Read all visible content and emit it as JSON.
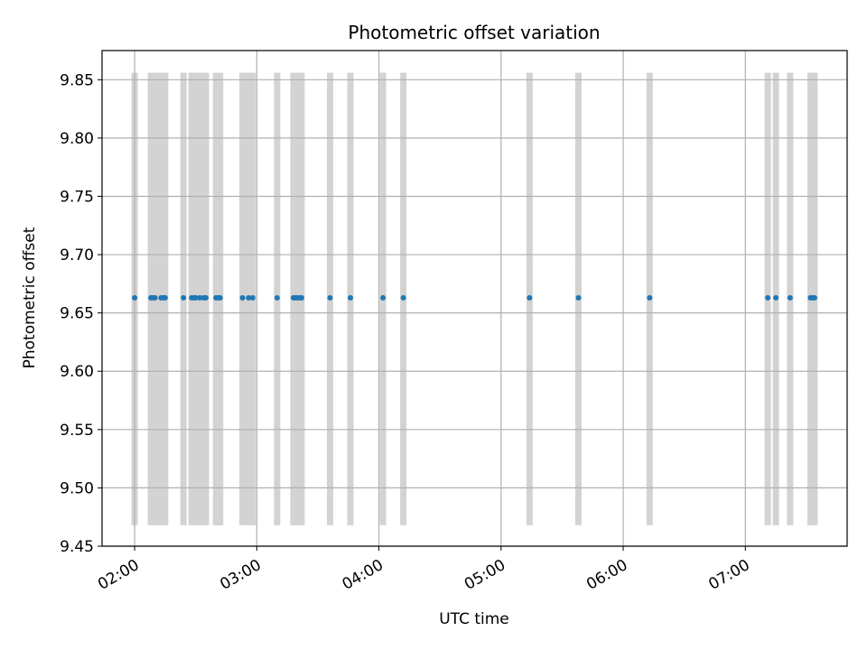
{
  "chart_data": {
    "type": "scatter",
    "title": "Photometric offset variation",
    "xlabel": "UTC time",
    "ylabel": "Photometric offset",
    "xlim": [
      "01:44",
      "07:50"
    ],
    "ylim": [
      9.45,
      9.875
    ],
    "x_ticks": [
      "02:00",
      "03:00",
      "04:00",
      "05:00",
      "06:00",
      "07:00"
    ],
    "y_ticks": [
      "9.45",
      "9.50",
      "9.55",
      "9.60",
      "9.65",
      "9.70",
      "9.75",
      "9.80",
      "9.85"
    ],
    "grid": true,
    "band_range": [
      9.468,
      9.856
    ],
    "band_color": "#d3d3d3",
    "point_color": "#1f77b4",
    "points": [
      {
        "x": "02:00",
        "y": 9.663
      },
      {
        "x": "02:08",
        "y": 9.663
      },
      {
        "x": "02:09",
        "y": 9.663
      },
      {
        "x": "02:10",
        "y": 9.663
      },
      {
        "x": "02:13",
        "y": 9.663
      },
      {
        "x": "02:14",
        "y": 9.663
      },
      {
        "x": "02:15",
        "y": 9.663
      },
      {
        "x": "02:24",
        "y": 9.663
      },
      {
        "x": "02:28",
        "y": 9.663
      },
      {
        "x": "02:29",
        "y": 9.663
      },
      {
        "x": "02:30",
        "y": 9.663
      },
      {
        "x": "02:32",
        "y": 9.663
      },
      {
        "x": "02:34",
        "y": 9.663
      },
      {
        "x": "02:35",
        "y": 9.663
      },
      {
        "x": "02:40",
        "y": 9.663
      },
      {
        "x": "02:41",
        "y": 9.663
      },
      {
        "x": "02:42",
        "y": 9.663
      },
      {
        "x": "02:53",
        "y": 9.663
      },
      {
        "x": "02:56",
        "y": 9.663
      },
      {
        "x": "02:58",
        "y": 9.663
      },
      {
        "x": "03:10",
        "y": 9.663
      },
      {
        "x": "03:18",
        "y": 9.663
      },
      {
        "x": "03:19",
        "y": 9.663
      },
      {
        "x": "03:20",
        "y": 9.663
      },
      {
        "x": "03:21",
        "y": 9.663
      },
      {
        "x": "03:22",
        "y": 9.663
      },
      {
        "x": "03:36",
        "y": 9.663
      },
      {
        "x": "03:46",
        "y": 9.663
      },
      {
        "x": "04:02",
        "y": 9.663
      },
      {
        "x": "04:12",
        "y": 9.663
      },
      {
        "x": "05:14",
        "y": 9.663
      },
      {
        "x": "05:38",
        "y": 9.663
      },
      {
        "x": "06:13",
        "y": 9.663
      },
      {
        "x": "07:11",
        "y": 9.663
      },
      {
        "x": "07:15",
        "y": 9.663
      },
      {
        "x": "07:22",
        "y": 9.663
      },
      {
        "x": "07:32",
        "y": 9.663
      },
      {
        "x": "07:33",
        "y": 9.663
      },
      {
        "x": "07:34",
        "y": 9.663
      }
    ]
  }
}
